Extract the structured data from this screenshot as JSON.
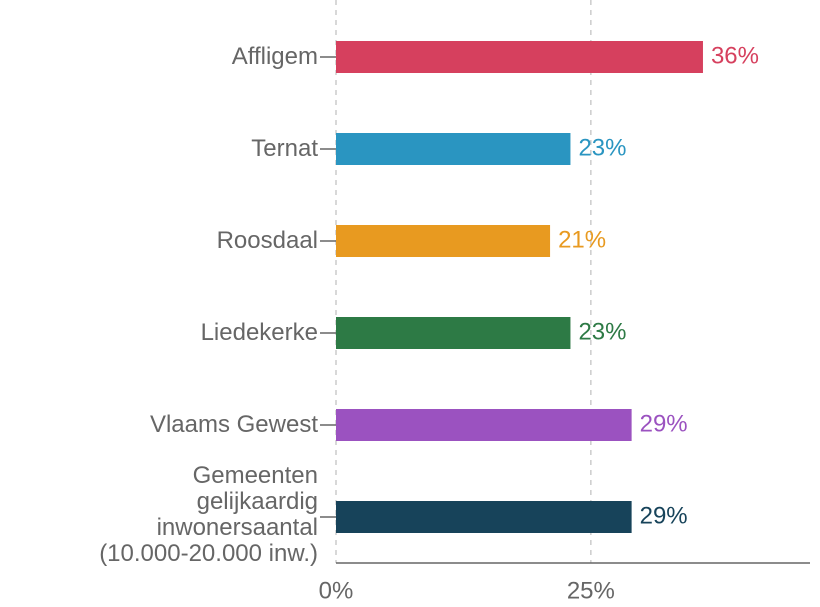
{
  "chart_data": {
    "type": "bar",
    "orientation": "horizontal",
    "categories": [
      "Affligem",
      "Ternat",
      "Roosdaal",
      "Liedekerke",
      "Vlaams Gewest",
      "Gemeenten\ngelijkaardig\ninwonersaantal\n(10.000-20.000 inw.)"
    ],
    "values": [
      36,
      23,
      21,
      23,
      29,
      29
    ],
    "value_labels": [
      "36%",
      "23%",
      "21%",
      "23%",
      "29%",
      "29%"
    ],
    "colors": [
      "#d6405e",
      "#2a95c1",
      "#e89a20",
      "#2d7a45",
      "#9b52c0",
      "#17435a"
    ],
    "xlim": [
      0,
      46.5
    ],
    "xticks": [
      {
        "value": 0,
        "label": "0%"
      },
      {
        "value": 25,
        "label": "25%"
      }
    ],
    "grid": true
  }
}
